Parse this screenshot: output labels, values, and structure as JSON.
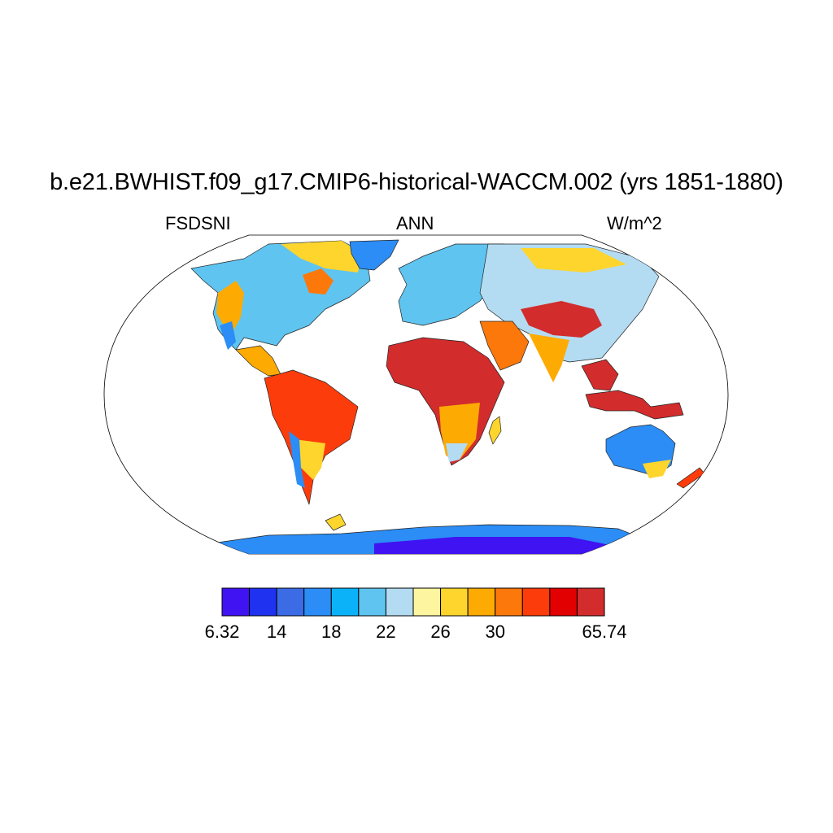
{
  "title": "b.e21.BWHIST.f09_g17.CMIP6-historical-WACCM.002 (yrs 1851-1880)",
  "left_label": "FSDSNI",
  "center_label": "ANN",
  "right_label": "W/m^2",
  "colorbar": {
    "colors": [
      "#4013f2",
      "#1f32ef",
      "#3b6ce6",
      "#2b8df5",
      "#0bb2f7",
      "#5fc4f0",
      "#b3dcf2",
      "#fdf59f",
      "#fdd52d",
      "#fdaa03",
      "#fd780a",
      "#fd3c0c",
      "#e20000",
      "#d22c2c"
    ],
    "labels": [
      {
        "text": "6.32",
        "index": 0
      },
      {
        "text": "14",
        "index": 2
      },
      {
        "text": "18",
        "index": 4
      },
      {
        "text": "22",
        "index": 6
      },
      {
        "text": "26",
        "index": 8
      },
      {
        "text": "30",
        "index": 10
      },
      {
        "text": "65.74",
        "index": 14
      }
    ]
  }
}
